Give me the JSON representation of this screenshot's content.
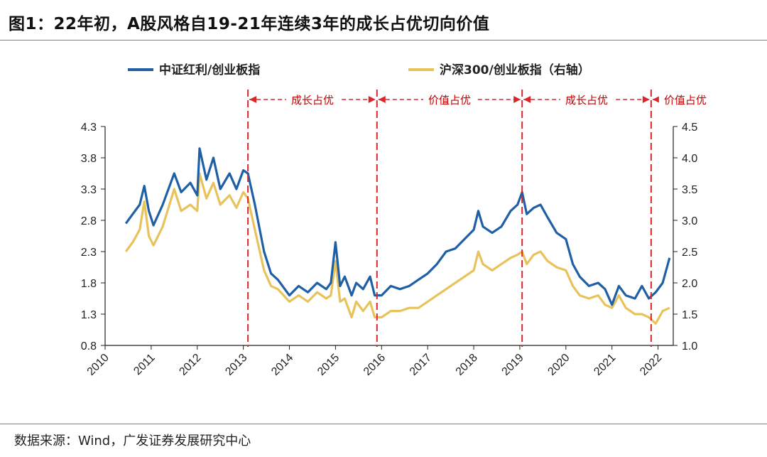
{
  "figure": {
    "title": "图1：22年初，A股风格自19-21年连续3年的成长占优切向价值",
    "source": "数据来源：Wind，广发证券发展研究中心"
  },
  "chart_data": {
    "type": "line",
    "title": "图1：22年初，A股风格自19-21年连续3年的成长占优切向价值",
    "x_range": [
      2010,
      2022.33
    ],
    "x_ticks": [
      "2010",
      "2011",
      "2012",
      "2013",
      "2014",
      "2015",
      "2016",
      "2017",
      "2018",
      "2019",
      "2020",
      "2021",
      "2022"
    ],
    "y_left": {
      "range": [
        0.8,
        4.3
      ],
      "ticks": [
        "4.3",
        "3.8",
        "3.3",
        "2.8",
        "2.3",
        "1.8",
        "1.3",
        "0.8"
      ]
    },
    "y_right": {
      "range": [
        1.0,
        4.5
      ],
      "ticks": [
        "4.5",
        "4.0",
        "3.5",
        "3.0",
        "2.5",
        "2.0",
        "1.5",
        "1.0"
      ]
    },
    "series": [
      {
        "name": "中证红利/创业板指",
        "axis": "left",
        "color": "#1f5fa6",
        "points": [
          [
            2010.45,
            2.75
          ],
          [
            2010.6,
            2.9
          ],
          [
            2010.75,
            3.05
          ],
          [
            2010.85,
            3.35
          ],
          [
            2010.95,
            2.95
          ],
          [
            2011.05,
            2.72
          ],
          [
            2011.25,
            3.05
          ],
          [
            2011.5,
            3.55
          ],
          [
            2011.65,
            3.25
          ],
          [
            2011.85,
            3.4
          ],
          [
            2012.0,
            3.2
          ],
          [
            2012.05,
            3.95
          ],
          [
            2012.2,
            3.45
          ],
          [
            2012.35,
            3.8
          ],
          [
            2012.5,
            3.3
          ],
          [
            2012.7,
            3.55
          ],
          [
            2012.85,
            3.3
          ],
          [
            2013.0,
            3.6
          ],
          [
            2013.1,
            3.55
          ],
          [
            2013.25,
            3.05
          ],
          [
            2013.45,
            2.3
          ],
          [
            2013.6,
            1.95
          ],
          [
            2013.75,
            1.85
          ],
          [
            2014.0,
            1.6
          ],
          [
            2014.2,
            1.75
          ],
          [
            2014.4,
            1.65
          ],
          [
            2014.6,
            1.8
          ],
          [
            2014.8,
            1.7
          ],
          [
            2014.9,
            1.8
          ],
          [
            2015.0,
            2.45
          ],
          [
            2015.1,
            1.75
          ],
          [
            2015.2,
            1.9
          ],
          [
            2015.35,
            1.6
          ],
          [
            2015.45,
            1.8
          ],
          [
            2015.6,
            1.7
          ],
          [
            2015.75,
            1.9
          ],
          [
            2015.85,
            1.6
          ],
          [
            2016.0,
            1.6
          ],
          [
            2016.2,
            1.75
          ],
          [
            2016.4,
            1.7
          ],
          [
            2016.6,
            1.75
          ],
          [
            2016.8,
            1.85
          ],
          [
            2017.0,
            1.95
          ],
          [
            2017.2,
            2.1
          ],
          [
            2017.4,
            2.3
          ],
          [
            2017.6,
            2.35
          ],
          [
            2017.8,
            2.5
          ],
          [
            2018.0,
            2.65
          ],
          [
            2018.1,
            2.95
          ],
          [
            2018.2,
            2.7
          ],
          [
            2018.4,
            2.6
          ],
          [
            2018.6,
            2.7
          ],
          [
            2018.8,
            2.95
          ],
          [
            2018.95,
            3.05
          ],
          [
            2019.05,
            3.25
          ],
          [
            2019.15,
            2.9
          ],
          [
            2019.3,
            3.0
          ],
          [
            2019.45,
            3.05
          ],
          [
            2019.6,
            2.85
          ],
          [
            2019.8,
            2.6
          ],
          [
            2020.0,
            2.5
          ],
          [
            2020.15,
            2.1
          ],
          [
            2020.3,
            1.9
          ],
          [
            2020.5,
            1.75
          ],
          [
            2020.7,
            1.8
          ],
          [
            2020.85,
            1.7
          ],
          [
            2021.0,
            1.45
          ],
          [
            2021.15,
            1.75
          ],
          [
            2021.3,
            1.6
          ],
          [
            2021.5,
            1.55
          ],
          [
            2021.65,
            1.75
          ],
          [
            2021.8,
            1.55
          ],
          [
            2021.95,
            1.65
          ],
          [
            2022.1,
            1.8
          ],
          [
            2022.25,
            2.2
          ]
        ]
      },
      {
        "name": "沪深300/创业板指（右轴）",
        "axis": "right",
        "color": "#e8c25a",
        "points": [
          [
            2010.45,
            2.5
          ],
          [
            2010.6,
            2.65
          ],
          [
            2010.75,
            2.85
          ],
          [
            2010.85,
            3.3
          ],
          [
            2010.95,
            2.75
          ],
          [
            2011.05,
            2.6
          ],
          [
            2011.25,
            2.9
          ],
          [
            2011.5,
            3.5
          ],
          [
            2011.65,
            3.15
          ],
          [
            2011.85,
            3.25
          ],
          [
            2012.0,
            3.15
          ],
          [
            2012.05,
            3.75
          ],
          [
            2012.2,
            3.35
          ],
          [
            2012.35,
            3.6
          ],
          [
            2012.5,
            3.25
          ],
          [
            2012.7,
            3.4
          ],
          [
            2012.85,
            3.2
          ],
          [
            2013.0,
            3.45
          ],
          [
            2013.1,
            3.35
          ],
          [
            2013.25,
            2.85
          ],
          [
            2013.45,
            2.2
          ],
          [
            2013.6,
            1.95
          ],
          [
            2013.75,
            1.9
          ],
          [
            2014.0,
            1.7
          ],
          [
            2014.2,
            1.8
          ],
          [
            2014.4,
            1.7
          ],
          [
            2014.6,
            1.85
          ],
          [
            2014.8,
            1.75
          ],
          [
            2014.9,
            1.8
          ],
          [
            2015.0,
            2.35
          ],
          [
            2015.1,
            1.7
          ],
          [
            2015.2,
            1.75
          ],
          [
            2015.35,
            1.45
          ],
          [
            2015.45,
            1.7
          ],
          [
            2015.6,
            1.55
          ],
          [
            2015.75,
            1.7
          ],
          [
            2015.85,
            1.45
          ],
          [
            2016.0,
            1.45
          ],
          [
            2016.2,
            1.55
          ],
          [
            2016.4,
            1.55
          ],
          [
            2016.6,
            1.6
          ],
          [
            2016.8,
            1.6
          ],
          [
            2017.0,
            1.7
          ],
          [
            2017.2,
            1.8
          ],
          [
            2017.4,
            1.9
          ],
          [
            2017.6,
            2.0
          ],
          [
            2017.8,
            2.1
          ],
          [
            2018.0,
            2.2
          ],
          [
            2018.1,
            2.5
          ],
          [
            2018.2,
            2.3
          ],
          [
            2018.4,
            2.2
          ],
          [
            2018.6,
            2.3
          ],
          [
            2018.8,
            2.4
          ],
          [
            2018.95,
            2.45
          ],
          [
            2019.05,
            2.5
          ],
          [
            2019.15,
            2.3
          ],
          [
            2019.3,
            2.45
          ],
          [
            2019.45,
            2.5
          ],
          [
            2019.6,
            2.35
          ],
          [
            2019.8,
            2.25
          ],
          [
            2020.0,
            2.2
          ],
          [
            2020.15,
            1.95
          ],
          [
            2020.3,
            1.8
          ],
          [
            2020.5,
            1.75
          ],
          [
            2020.7,
            1.8
          ],
          [
            2020.85,
            1.65
          ],
          [
            2021.0,
            1.6
          ],
          [
            2021.15,
            1.8
          ],
          [
            2021.3,
            1.6
          ],
          [
            2021.5,
            1.5
          ],
          [
            2021.65,
            1.5
          ],
          [
            2021.8,
            1.45
          ],
          [
            2021.95,
            1.35
          ],
          [
            2022.1,
            1.55
          ],
          [
            2022.25,
            1.6
          ]
        ]
      }
    ],
    "regime_dividers": [
      2013.1,
      2015.9,
      2019.05,
      2021.85
    ],
    "regime_labels": [
      "成长占优",
      "价值占优",
      "成长占优",
      "价值占优"
    ]
  }
}
